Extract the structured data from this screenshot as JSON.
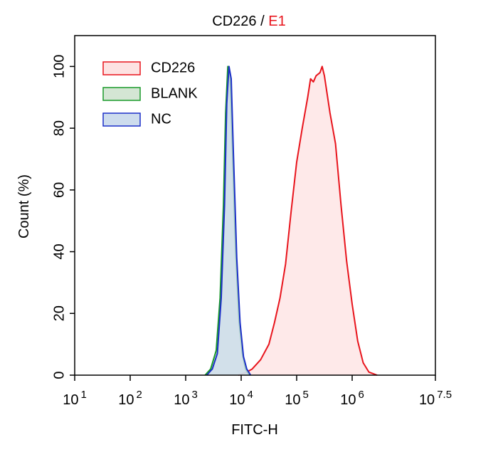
{
  "chart_data": {
    "type": "histogram-overlay",
    "title": [
      {
        "text": "CD226 /",
        "color": "#000000"
      },
      {
        "text": "E1",
        "color": "#e8141c"
      }
    ],
    "xlabel": "FITC-H",
    "ylabel": "Count  (%)",
    "xscale": "log",
    "xlim": [
      10,
      31622776.6
    ],
    "xticks": [
      {
        "value": 10,
        "label": {
          "base": "10",
          "exp": "1"
        }
      },
      {
        "value": 100,
        "label": {
          "base": "10",
          "exp": "2"
        }
      },
      {
        "value": 1000,
        "label": {
          "base": "10",
          "exp": "3"
        }
      },
      {
        "value": 10000,
        "label": {
          "base": "10",
          "exp": "4"
        }
      },
      {
        "value": 100000,
        "label": {
          "base": "10",
          "exp": "5"
        }
      },
      {
        "value": 1000000,
        "label": {
          "base": "10",
          "exp": "6"
        }
      },
      {
        "value": 31622776.6,
        "label": {
          "base": "10",
          "exp": "7.5"
        }
      }
    ],
    "ylim": [
      0,
      110
    ],
    "yticks": [
      0,
      20,
      40,
      60,
      80,
      100
    ],
    "legend": "upper left",
    "series": [
      {
        "name": "CD226",
        "color": "#e8141c",
        "fill": "#fde2e2",
        "x": [
          8900,
          12600,
          15800,
          22400,
          31600,
          39800,
          50100,
          63100,
          79400,
          100000,
          126000,
          158000,
          178000,
          200000,
          224000,
          263000,
          288000,
          316000,
          398000,
          501000,
          631000,
          794000,
          1000000,
          1260000,
          1580000,
          2000000,
          2820000
        ],
        "values": [
          0,
          1,
          2,
          5,
          10,
          17,
          25,
          36,
          53,
          69,
          80,
          90,
          96,
          95,
          97,
          98,
          100,
          97,
          85,
          75,
          55,
          37,
          23,
          11,
          4,
          1,
          0
        ]
      },
      {
        "name": "BLANK",
        "color": "#1a9a2a",
        "fill": "#d4e6d4",
        "x": [
          2240,
          2820,
          3550,
          4170,
          4790,
          5250,
          5750,
          6310,
          6920,
          7940,
          9120,
          10500,
          12000,
          14100
        ],
        "values": [
          0,
          2,
          8,
          25,
          55,
          85,
          100,
          97,
          75,
          40,
          18,
          7,
          2,
          0
        ]
      },
      {
        "name": "NC",
        "color": "#1c2fc8",
        "fill": "#cddced",
        "x": [
          2400,
          3020,
          3720,
          4370,
          5010,
          5500,
          6030,
          6610,
          7240,
          8320,
          9550,
          11000,
          12600,
          14800
        ],
        "values": [
          0,
          2,
          7,
          25,
          55,
          88,
          100,
          96,
          72,
          38,
          17,
          6,
          2,
          0
        ]
      }
    ]
  }
}
